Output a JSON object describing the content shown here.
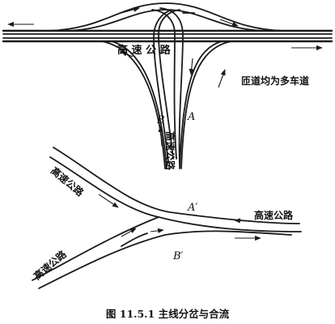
{
  "figure": {
    "caption": "图 11.5.1   主线分岔与合流"
  },
  "top_diagram": {
    "highway_label": "高 速 公 路",
    "ramp_note": "匝道均为多车道",
    "branch_label": "高速公路",
    "point_a": "A",
    "point_b": "B"
  },
  "bottom_diagram": {
    "highway_upper_left": "高速公路",
    "highway_right": "高速公路",
    "highway_lower_left": "高速公路",
    "point_a_prime": "A′",
    "point_b_prime": "B′"
  }
}
